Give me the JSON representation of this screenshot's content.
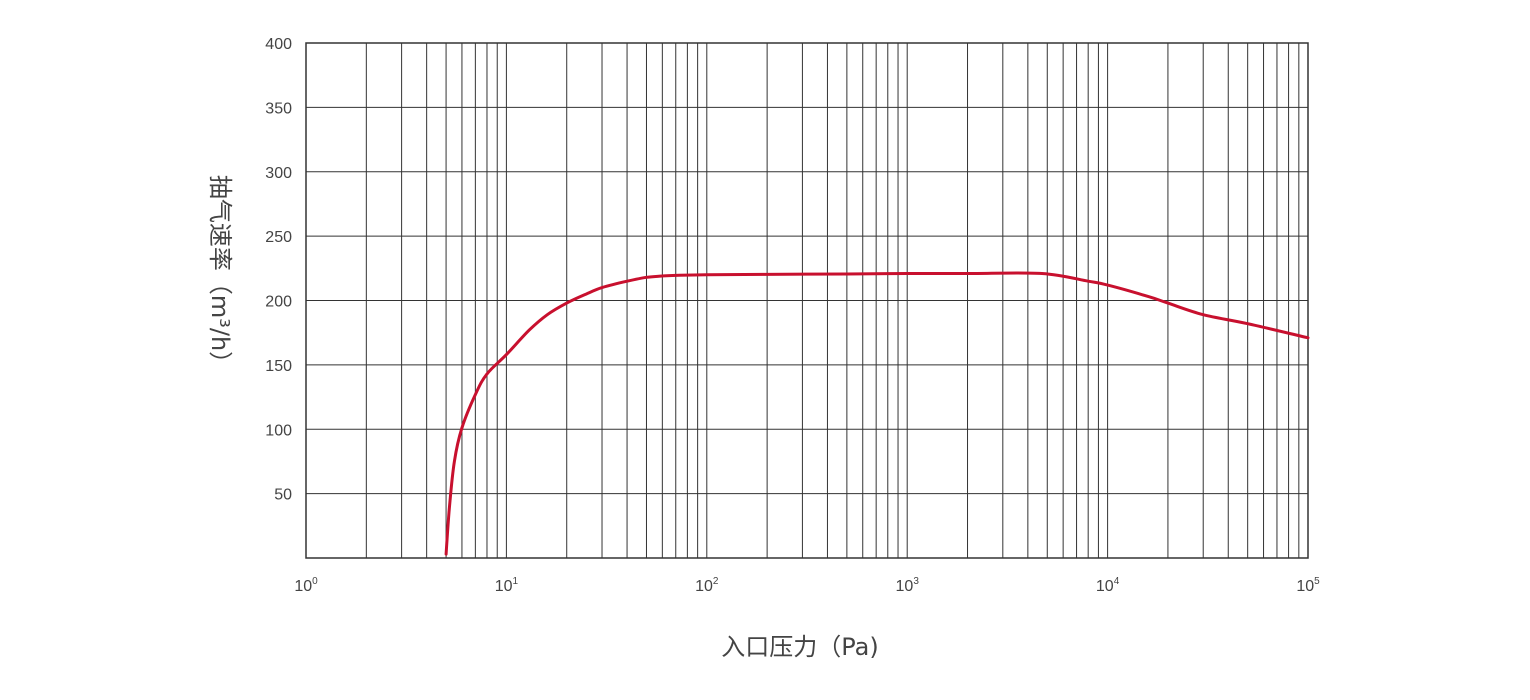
{
  "chart_data": {
    "type": "line",
    "title": "",
    "xlabel": "入口压力（Pa)",
    "ylabel": "抽气速率（m³/h）",
    "x_scale": "log",
    "xlim": [
      1,
      100000
    ],
    "ylim": [
      0,
      400
    ],
    "grid": true,
    "x_ticks": [
      {
        "base": "10",
        "exp": "0"
      },
      {
        "base": "10",
        "exp": "1"
      },
      {
        "base": "10",
        "exp": "2"
      },
      {
        "base": "10",
        "exp": "3"
      },
      {
        "base": "10",
        "exp": "4"
      },
      {
        "base": "10",
        "exp": "5"
      }
    ],
    "y_ticks": [
      "50",
      "100",
      "150",
      "200",
      "250",
      "300",
      "350",
      "400"
    ],
    "series": [
      {
        "color": "#c8102e",
        "x": [
          5,
          5.2,
          5.5,
          6,
          7,
          8,
          10,
          13,
          16,
          20,
          25,
          30,
          40,
          50,
          60,
          70,
          100,
          200,
          500,
          1000,
          2000,
          4700,
          8000,
          10000,
          16000,
          20000,
          30000,
          50000,
          100000
        ],
        "y": [
          3,
          40,
          75,
          101,
          127,
          143,
          158,
          177,
          189,
          198,
          205,
          210,
          215,
          218,
          219,
          219.5,
          220,
          220.3,
          220.6,
          221,
          221,
          221,
          215,
          212,
          203,
          198,
          189,
          182,
          171
        ]
      }
    ]
  }
}
